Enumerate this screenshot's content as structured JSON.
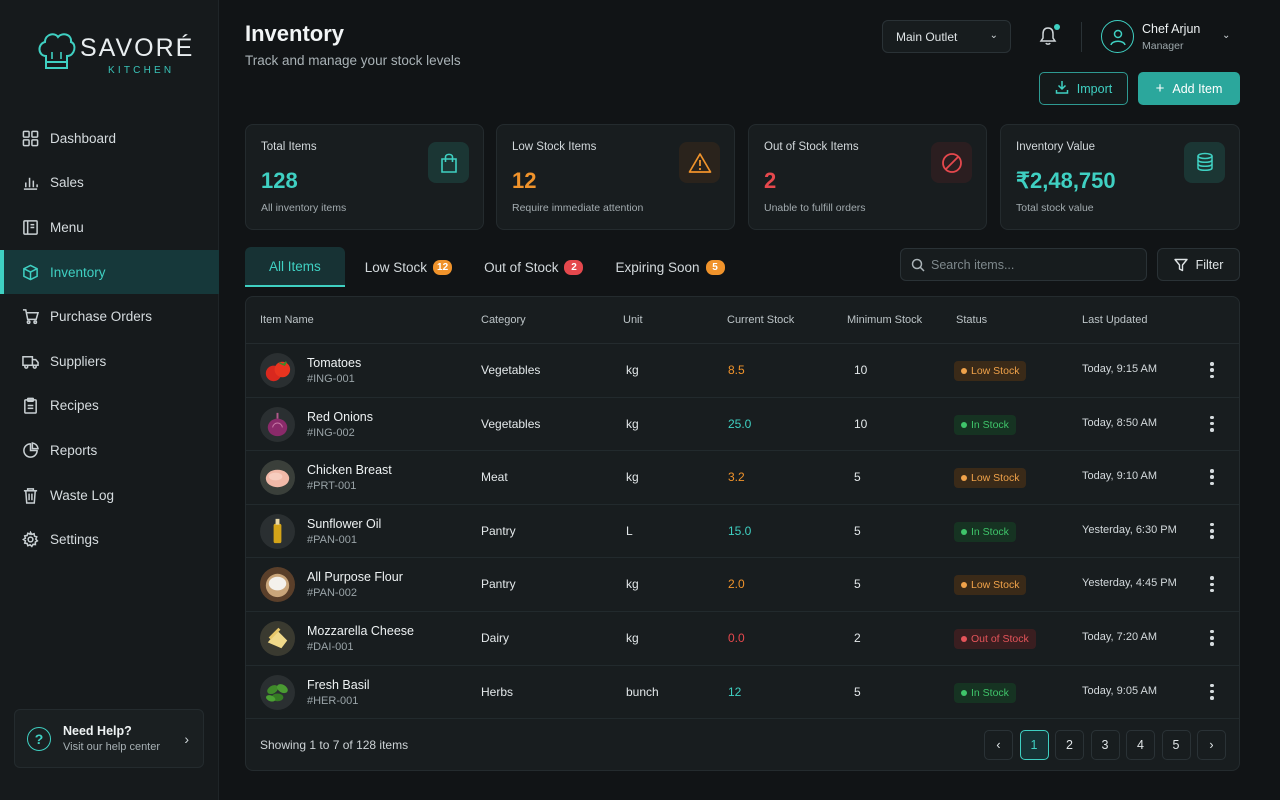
{
  "brand": {
    "name": "SAVORÉ",
    "tagline": "KITCHEN"
  },
  "sidebar": {
    "items": [
      {
        "label": "Dashboard",
        "icon": "grid-icon"
      },
      {
        "label": "Sales",
        "icon": "bar-chart-icon"
      },
      {
        "label": "Menu",
        "icon": "menu-book-icon"
      },
      {
        "label": "Inventory",
        "icon": "box-icon",
        "active": true
      },
      {
        "label": "Purchase Orders",
        "icon": "cart-icon"
      },
      {
        "label": "Suppliers",
        "icon": "truck-icon"
      },
      {
        "label": "Recipes",
        "icon": "clipboard-icon"
      },
      {
        "label": "Reports",
        "icon": "pie-chart-icon"
      },
      {
        "label": "Waste Log",
        "icon": "trash-icon"
      },
      {
        "label": "Settings",
        "icon": "gear-icon"
      }
    ],
    "help": {
      "title": "Need Help?",
      "subtitle": "Visit our help center"
    }
  },
  "header": {
    "title": "Inventory",
    "subtitle": "Track and manage your stock levels",
    "outlet": "Main Outlet",
    "user": {
      "name": "Chef Arjun",
      "role": "Manager"
    },
    "import_label": "Import",
    "add_label": "Add Item"
  },
  "stats": [
    {
      "label": "Total Items",
      "value": "128",
      "desc": "All inventory items",
      "color": "#3fd0c2",
      "icon": "bag-icon"
    },
    {
      "label": "Low Stock Items",
      "value": "12",
      "desc": "Require immediate attention",
      "color": "#f0932b",
      "icon": "warning-icon"
    },
    {
      "label": "Out of Stock Items",
      "value": "2",
      "desc": "Unable to fulfill orders",
      "color": "#e5484d",
      "icon": "block-icon"
    },
    {
      "label": "Inventory Value",
      "value": "₹2,48,750",
      "desc": "Total stock value",
      "color": "#3fd0c2",
      "icon": "coins-icon"
    }
  ],
  "tabs": [
    {
      "label": "All Items",
      "active": true
    },
    {
      "label": "Low Stock",
      "count": "12",
      "color": "#f0932b"
    },
    {
      "label": "Out of Stock",
      "count": "2",
      "color": "#e5484d"
    },
    {
      "label": "Expiring Soon",
      "count": "5",
      "color": "#f0932b"
    }
  ],
  "search": {
    "placeholder": "Search items..."
  },
  "filter_label": "Filter",
  "table": {
    "columns": [
      "Item Name",
      "Category",
      "Unit",
      "Current Stock",
      "Minimum Stock",
      "Status",
      "Last Updated"
    ],
    "rows": [
      {
        "name": "Tomatoes",
        "code": "#ING-001",
        "category": "Vegetables",
        "unit": "kg",
        "current": "8.5",
        "minimum": "10",
        "status": "Low Stock",
        "updated": "Today, 9:15 AM",
        "thumb": "tomato"
      },
      {
        "name": "Red Onions",
        "code": "#ING-002",
        "category": "Vegetables",
        "unit": "kg",
        "current": "25.0",
        "minimum": "10",
        "status": "In Stock",
        "updated": "Today, 8:50 AM",
        "thumb": "onion"
      },
      {
        "name": "Chicken Breast",
        "code": "#PRT-001",
        "category": "Meat",
        "unit": "kg",
        "current": "3.2",
        "minimum": "5",
        "status": "Low Stock",
        "updated": "Today, 9:10 AM",
        "thumb": "chicken"
      },
      {
        "name": "Sunflower Oil",
        "code": "#PAN-001",
        "category": "Pantry",
        "unit": "L",
        "current": "15.0",
        "minimum": "5",
        "status": "In Stock",
        "updated": "Yesterday, 6:30 PM",
        "thumb": "oil"
      },
      {
        "name": "All Purpose Flour",
        "code": "#PAN-002",
        "category": "Pantry",
        "unit": "kg",
        "current": "2.0",
        "minimum": "5",
        "status": "Low Stock",
        "updated": "Yesterday, 4:45 PM",
        "thumb": "flour"
      },
      {
        "name": "Mozzarella Cheese",
        "code": "#DAI-001",
        "category": "Dairy",
        "unit": "kg",
        "current": "0.0",
        "minimum": "2",
        "status": "Out of Stock",
        "updated": "Today, 7:20 AM",
        "thumb": "cheese"
      },
      {
        "name": "Fresh Basil",
        "code": "#HER-001",
        "category": "Herbs",
        "unit": "bunch",
        "current": "12",
        "minimum": "5",
        "status": "In Stock",
        "updated": "Today, 9:05 AM",
        "thumb": "basil"
      }
    ]
  },
  "pagination": {
    "summary": "Showing 1 to 7 of 128 items",
    "pages": [
      "1",
      "2",
      "3",
      "4",
      "5"
    ],
    "current": "1"
  },
  "colors": {
    "accent": "#3fd0c2",
    "warning": "#f0932b",
    "danger": "#e5484d",
    "success": "#34c46a"
  }
}
